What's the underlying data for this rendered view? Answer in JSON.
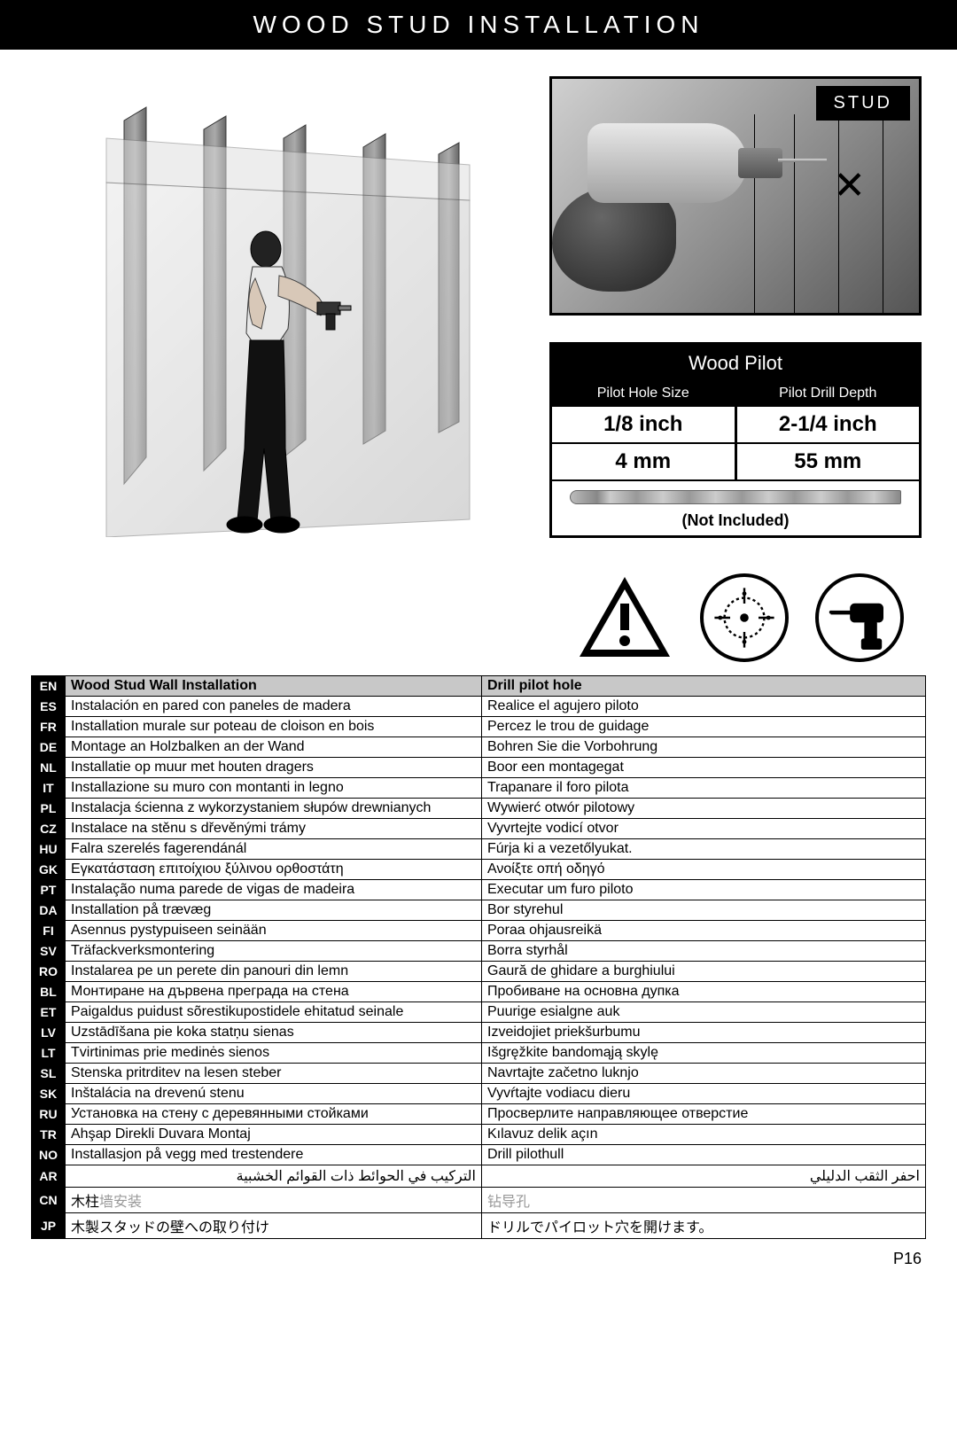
{
  "header": {
    "title": "WOOD STUD INSTALLATION"
  },
  "stud_label": "STUD",
  "pilot_table": {
    "title": "Wood Pilot",
    "col1_header": "Pilot Hole Size",
    "col2_header": "Pilot Drill Depth",
    "row1": {
      "size": "1/8 inch",
      "depth": "2-1/4 inch"
    },
    "row2": {
      "size": "4 mm",
      "depth": "55 mm"
    },
    "not_included": "(Not Included)"
  },
  "lang_header": {
    "code": "EN",
    "install": "Wood Stud Wall Installation",
    "drill": "Drill pilot hole"
  },
  "langs": [
    {
      "code": "ES",
      "install": "Instalación en pared con paneles de madera",
      "drill": "Realice el agujero piloto"
    },
    {
      "code": "FR",
      "install": "Installation murale sur poteau de cloison en bois",
      "drill": "Percez le trou de guidage"
    },
    {
      "code": "DE",
      "install": "Montage an Holzbalken an der Wand",
      "drill": "Bohren Sie die Vorbohrung"
    },
    {
      "code": "NL",
      "install": "Installatie op muur met houten dragers",
      "drill": "Boor een montagegat"
    },
    {
      "code": "IT",
      "install": "Installazione su muro con montanti in legno",
      "drill": "Trapanare il foro pilota"
    },
    {
      "code": "PL",
      "install": "Instalacja ścienna z wykorzystaniem słupów drewnianych",
      "drill": "Wywierć otwór pilotowy"
    },
    {
      "code": "CZ",
      "install": "Instalace na stěnu s dřevěnými trámy",
      "drill": "Vyvrtejte vodicí otvor"
    },
    {
      "code": "HU",
      "install": "Falra szerelés fagerendánál",
      "drill": "Fúrja ki a vezetőlyukat."
    },
    {
      "code": "GK",
      "install": "Εγκατάσταση επιτοίχιου ξύλινου ορθοστάτη",
      "drill": "Ανοίξτε οπή οδηγό"
    },
    {
      "code": "PT",
      "install": "Instalação numa parede de vigas de madeira",
      "drill": "Executar um furo piloto"
    },
    {
      "code": "DA",
      "install": "Installation på trævæg",
      "drill": "Bor styrehul"
    },
    {
      "code": "FI",
      "install": "Asennus pystypuiseen seinään",
      "drill": "Poraa ohjausreikä"
    },
    {
      "code": "SV",
      "install": "Träfackverksmontering",
      "drill": "Borra styrhål"
    },
    {
      "code": "RO",
      "install": "Instalarea pe un perete din panouri din lemn",
      "drill": "Gaură de ghidare a burghiului"
    },
    {
      "code": "BL",
      "install": "Монтиране на дървена преграда на стена",
      "drill": "Пробиване на основна дупка"
    },
    {
      "code": "ET",
      "install": "Paigaldus puidust sõrestikupostidele ehitatud seinale",
      "drill": "Puurige esialgne auk"
    },
    {
      "code": "LV",
      "install": "Uzstādīšana pie koka statņu sienas",
      "drill": "Izveidojiet priekšurbumu"
    },
    {
      "code": "LT",
      "install": "Tvirtinimas prie medinės sienos",
      "drill": "Išgręžkite bandomąją skylę"
    },
    {
      "code": "SL",
      "install": "Stenska pritrditev na lesen steber",
      "drill": "Navrtajte začetno luknjo"
    },
    {
      "code": "SK",
      "install": "Inštalácia na drevenú stenu",
      "drill": "Vyvŕtajte vodiacu dieru"
    },
    {
      "code": "RU",
      "install": "Установка на стену с деревянными стойками",
      "drill": "Просверлите направляющее отверстие"
    },
    {
      "code": "TR",
      "install": "Ahşap Direkli Duvara Montaj",
      "drill": "Kılavuz delik açın"
    },
    {
      "code": "NO",
      "install": "Installasjon på vegg med trestendere",
      "drill": "Drill pilothull"
    },
    {
      "code": "AR",
      "install": "التركيب في الحوائط ذات القوائم الخشبية",
      "drill": "احفر الثقب الدليلي",
      "rtl": true
    },
    {
      "code": "CN",
      "install": "木柱墙安装",
      "drill": "钻导孔",
      "gray": true
    },
    {
      "code": "JP",
      "install": "木製スタッドの壁への取り付け",
      "drill": "ドリルでパイロット穴を開けます。"
    }
  ],
  "page_number": "P16",
  "colors": {
    "header_bg": "#000000",
    "header_fg": "#ffffff",
    "row_header_bg": "#c8c8c8",
    "border": "#000000"
  }
}
